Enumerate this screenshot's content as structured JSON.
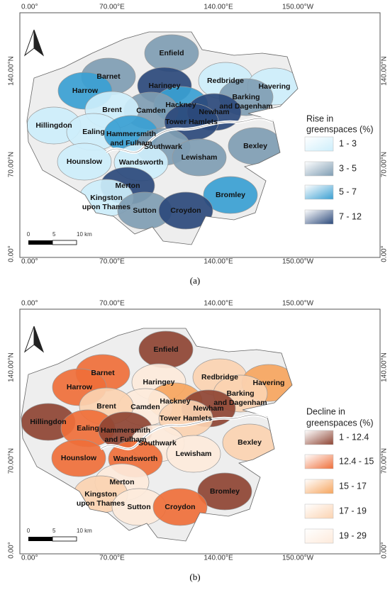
{
  "panels": [
    {
      "coords": {
        "top": [
          "0.00°",
          "70.00°E",
          "140.00°E",
          "150.00°W"
        ],
        "left": [
          "140.00°N",
          "70.00°N",
          "0.00°"
        ],
        "right": [
          "140.00°N",
          "70.00°N",
          "0.00°"
        ],
        "bottom": [
          "0.00°",
          "70.00°E",
          "140.00°E",
          "150.00°W"
        ]
      },
      "legend": {
        "title": [
          "Rise in",
          "greenspaces (%)"
        ],
        "items": [
          {
            "label": "1 - 3",
            "color": "#cdeefb"
          },
          {
            "label": "3 - 5",
            "color": "#7f9db3"
          },
          {
            "label": "5 - 7",
            "color": "#3a9fd2"
          },
          {
            "label": "7 - 12",
            "color": "#2b497b"
          }
        ]
      },
      "scale_bar": [
        "0",
        "5",
        "10 km"
      ],
      "boroughs": [
        {
          "lines": [
            "Enfield"
          ],
          "color": "#7f9db3"
        },
        {
          "lines": [
            "Barnet"
          ],
          "color": "#7f9db3"
        },
        {
          "lines": [
            "Haringey"
          ],
          "color": "#2b497b"
        },
        {
          "lines": [
            "Redbridge"
          ],
          "color": "#cdeefb"
        },
        {
          "lines": [
            "Havering"
          ],
          "color": "#cdeefb"
        },
        {
          "lines": [
            "Harrow"
          ],
          "color": "#3a9fd2"
        },
        {
          "lines": [
            "Barking",
            "and Dagenham"
          ],
          "color": "#7f9db3"
        },
        {
          "lines": [
            "Hackney"
          ],
          "color": "#3a9fd2"
        },
        {
          "lines": [
            "Camden"
          ],
          "color": "#7f9db3"
        },
        {
          "lines": [
            "Brent"
          ],
          "color": "#cdeefb"
        },
        {
          "lines": [
            "Newham"
          ],
          "color": "#2b497b"
        },
        {
          "lines": [
            "Tower Hamlets"
          ],
          "color": "#2b497b"
        },
        {
          "lines": [
            "Hillingdon"
          ],
          "color": "#cdeefb"
        },
        {
          "lines": [
            "Ealing"
          ],
          "color": "#cdeefb"
        },
        {
          "lines": [
            "Hammersmith",
            "and Fulham"
          ],
          "color": "#3a9fd2"
        },
        {
          "lines": [
            "Southwark"
          ],
          "color": "#7f9db3"
        },
        {
          "lines": [
            "Bexley"
          ],
          "color": "#7f9db3"
        },
        {
          "lines": [
            "Lewisham"
          ],
          "color": "#7f9db3"
        },
        {
          "lines": [
            "Hounslow"
          ],
          "color": "#cdeefb"
        },
        {
          "lines": [
            "Wandsworth"
          ],
          "color": "#cdeefb"
        },
        {
          "lines": [
            "Merton"
          ],
          "color": "#2b497b"
        },
        {
          "lines": [
            "Kingston",
            "upon Thames"
          ],
          "color": "#cdeefb"
        },
        {
          "lines": [
            "Bromley"
          ],
          "color": "#3a9fd2"
        },
        {
          "lines": [
            "Sutton"
          ],
          "color": "#7f9db3"
        },
        {
          "lines": [
            "Croydon"
          ],
          "color": "#2b497b"
        }
      ],
      "caption": "(a)"
    },
    {
      "coords": {
        "top": [
          "0.00°",
          "70.00°E",
          "140.00°E",
          "150.00°W"
        ],
        "left": [
          "140.00°N",
          "70.00°N",
          "0.00°"
        ],
        "right": [
          "140.00°N",
          "70.00°N",
          "0.00°"
        ],
        "bottom": [
          "0.00°",
          "70.00°E",
          "140.00°E",
          "150.00°W"
        ]
      },
      "legend": {
        "title": [
          "Decline in",
          "greenspaces (%)"
        ],
        "items": [
          {
            "label": "1 - 12.4",
            "color": "#8e4433"
          },
          {
            "label": "12.4 - 15",
            "color": "#ef6f3a"
          },
          {
            "label": "15 - 17",
            "color": "#f6a55e"
          },
          {
            "label": "17 - 19",
            "color": "#fbd3b1"
          },
          {
            "label": "19 - 29",
            "color": "#fdeadb"
          }
        ]
      },
      "scale_bar": [
        "0",
        "5",
        "10 km"
      ],
      "boroughs": [
        {
          "lines": [
            "Enfield"
          ],
          "color": "#8e4433"
        },
        {
          "lines": [
            "Barnet"
          ],
          "color": "#ef6f3a"
        },
        {
          "lines": [
            "Haringey"
          ],
          "color": "#fdeadb"
        },
        {
          "lines": [
            "Redbridge"
          ],
          "color": "#fbd3b1"
        },
        {
          "lines": [
            "Havering"
          ],
          "color": "#f6a55e"
        },
        {
          "lines": [
            "Harrow"
          ],
          "color": "#ef6f3a"
        },
        {
          "lines": [
            "Barking",
            "and Dagenham"
          ],
          "color": "#fbd3b1"
        },
        {
          "lines": [
            "Hackney"
          ],
          "color": "#f6a55e"
        },
        {
          "lines": [
            "Camden"
          ],
          "color": "#fdeadb"
        },
        {
          "lines": [
            "Brent"
          ],
          "color": "#fbd3b1"
        },
        {
          "lines": [
            "Newham"
          ],
          "color": "#8e4433"
        },
        {
          "lines": [
            "Tower Hamlets"
          ],
          "color": "#fbd3b1"
        },
        {
          "lines": [
            "Hillingdon"
          ],
          "color": "#8e4433"
        },
        {
          "lines": [
            "Ealing"
          ],
          "color": "#ef6f3a"
        },
        {
          "lines": [
            "Hammersmith",
            "and Fulham"
          ],
          "color": "#8e4433"
        },
        {
          "lines": [
            "Southwark"
          ],
          "color": "#fdeadb"
        },
        {
          "lines": [
            "Bexley"
          ],
          "color": "#fbd3b1"
        },
        {
          "lines": [
            "Lewisham"
          ],
          "color": "#fdeadb"
        },
        {
          "lines": [
            "Hounslow"
          ],
          "color": "#ef6f3a"
        },
        {
          "lines": [
            "Wandsworth"
          ],
          "color": "#ef6f3a"
        },
        {
          "lines": [
            "Merton"
          ],
          "color": "#fdeadb"
        },
        {
          "lines": [
            "Kingston",
            "upon Thames"
          ],
          "color": "#fbd3b1"
        },
        {
          "lines": [
            "Bromley"
          ],
          "color": "#8e4433"
        },
        {
          "lines": [
            "Sutton"
          ],
          "color": "#fdeadb"
        },
        {
          "lines": [
            "Croydon"
          ],
          "color": "#ef6f3a"
        }
      ],
      "caption": "(b)"
    }
  ]
}
